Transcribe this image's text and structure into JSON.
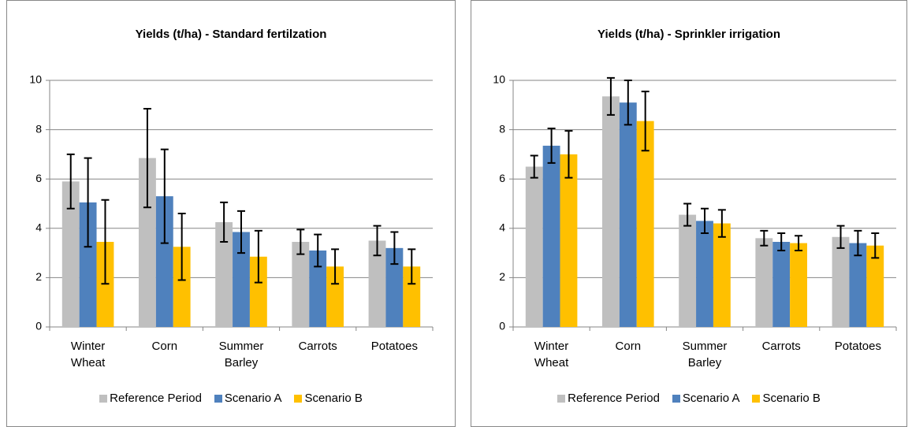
{
  "chart_data": [
    {
      "type": "bar",
      "title": "Yields (t/ha) - Standard fertilzation",
      "categories": [
        "Winter Wheat",
        "Corn",
        "Summer Barley",
        "Carrots",
        "Potatoes"
      ],
      "series": [
        {
          "name": "Reference Period",
          "color": "#bfbfbf",
          "values": [
            5.9,
            6.85,
            4.25,
            3.45,
            3.5
          ],
          "errors": [
            1.1,
            2.0,
            0.8,
            0.5,
            0.6
          ]
        },
        {
          "name": "Scenario A",
          "color": "#4f81bd",
          "values": [
            5.05,
            5.3,
            3.85,
            3.1,
            3.2
          ],
          "errors": [
            1.8,
            1.9,
            0.85,
            0.65,
            0.65
          ]
        },
        {
          "name": "Scenario B",
          "color": "#ffc000",
          "values": [
            3.45,
            3.25,
            2.85,
            2.45,
            2.45
          ],
          "errors": [
            1.7,
            1.35,
            1.05,
            0.7,
            0.7
          ]
        }
      ],
      "ylim": [
        0,
        10
      ],
      "yticks": [
        0,
        2,
        4,
        6,
        8,
        10
      ],
      "grid": true,
      "legend": "bottom"
    },
    {
      "type": "bar",
      "title": "Yields (t/ha) - Sprinkler irrigation",
      "categories": [
        "Winter Wheat",
        "Corn",
        "Summer Barley",
        "Carrots",
        "Potatoes"
      ],
      "series": [
        {
          "name": "Reference Period",
          "color": "#bfbfbf",
          "values": [
            6.5,
            9.35,
            4.55,
            3.6,
            3.65
          ],
          "errors": [
            0.45,
            0.75,
            0.45,
            0.3,
            0.45
          ]
        },
        {
          "name": "Scenario A",
          "color": "#4f81bd",
          "values": [
            7.35,
            9.1,
            4.3,
            3.45,
            3.4
          ],
          "errors": [
            0.7,
            0.9,
            0.5,
            0.35,
            0.5
          ]
        },
        {
          "name": "Scenario B",
          "color": "#ffc000",
          "values": [
            7.0,
            8.35,
            4.2,
            3.4,
            3.3
          ],
          "errors": [
            0.95,
            1.2,
            0.55,
            0.3,
            0.5
          ]
        }
      ],
      "ylim": [
        0,
        10
      ],
      "yticks": [
        0,
        2,
        4,
        6,
        8,
        10
      ],
      "grid": true,
      "legend": "bottom"
    }
  ]
}
